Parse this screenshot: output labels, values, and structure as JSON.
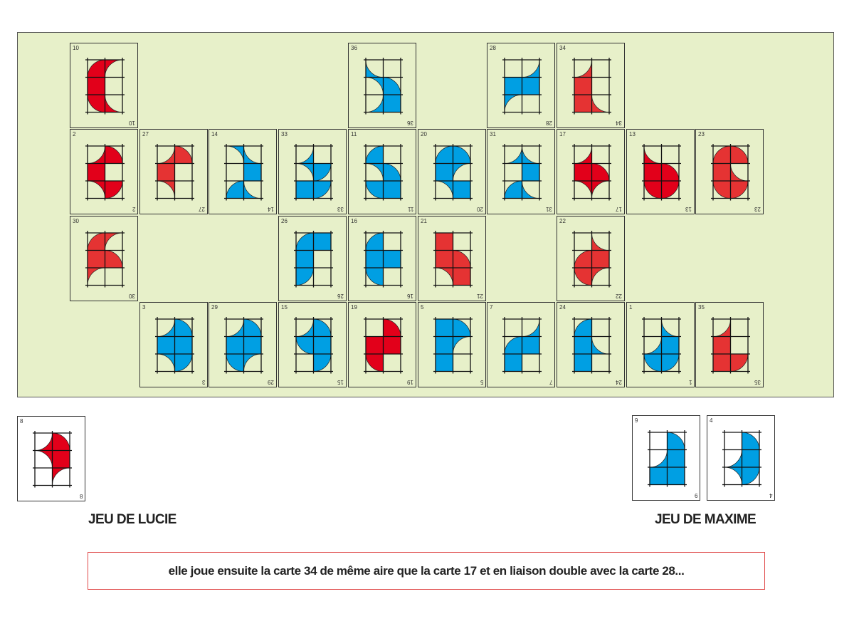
{
  "colors": {
    "red": "#e2001a",
    "red2": "#e53333",
    "blue": "#009fe3",
    "board": "#e7f0c9"
  },
  "board": {
    "rows": [
      [
        "10",
        null,
        null,
        null,
        "36",
        null,
        "28",
        "34",
        null,
        null
      ],
      [
        "2",
        "27",
        "14",
        "33",
        "11",
        "20",
        "31",
        "17",
        "13",
        "23"
      ],
      [
        "30",
        null,
        null,
        "26",
        "16",
        "21",
        null,
        "22",
        null,
        null
      ],
      [
        null,
        "3",
        "29",
        "15",
        "19",
        "5",
        "7",
        "24",
        "1",
        "35"
      ]
    ]
  },
  "hands": {
    "lucie": {
      "label": "JEU DE LUCIE",
      "cards": [
        "8"
      ]
    },
    "maxime": {
      "label": "JEU DE MAXIME",
      "cards": [
        "9",
        "4"
      ]
    }
  },
  "message": "elle joue ensuite la carte 34 de même aire que la carte 17 et en liaison double avec la carte 28...",
  "cards": {
    "10": {
      "number": "10",
      "color": "red",
      "cells": [
        "q-br",
        "c-br",
        "F",
        "E",
        "q-tr",
        "c-tr"
      ]
    },
    "36": {
      "number": "36",
      "color": "blue",
      "cells": [
        "c-tr",
        "E",
        "c-bl",
        "q-bl",
        "c-tl",
        "F"
      ]
    },
    "28": {
      "number": "28",
      "color": "blue",
      "cells": [
        "E",
        "c-tl",
        "F",
        "F",
        "c-br",
        "E"
      ]
    },
    "34": {
      "number": "34",
      "color": "red2",
      "cells": [
        "c-tl",
        "E",
        "F",
        "E",
        "F",
        "c-tr"
      ]
    },
    "2": {
      "number": "2",
      "color": "red",
      "cells": [
        "c-tl",
        "q-bl",
        "F",
        "E",
        "c-bl",
        "q-tl"
      ]
    },
    "27": {
      "number": "27",
      "color": "red2",
      "cells": [
        "c-tl",
        "q-bl",
        "F",
        "E",
        "c-bl",
        "E"
      ]
    },
    "14": {
      "number": "14",
      "color": "blue",
      "cells": [
        "c-bl",
        "c-tr",
        "E",
        "F",
        "q-br",
        "c-tr"
      ]
    },
    "33": {
      "number": "33",
      "color": "blue",
      "cells": [
        "c-tl",
        "E",
        "c-bl",
        "q-tl",
        "F",
        "q-tl"
      ]
    },
    "11": {
      "number": "11",
      "color": "blue",
      "cells": [
        "q-br",
        "E",
        "c-bl",
        "q-bl",
        "q-tr",
        "F"
      ]
    },
    "20": {
      "number": "20",
      "color": "blue",
      "cells": [
        "q-br",
        "q-bl",
        "F",
        "c-br",
        "c-bl",
        "F"
      ]
    },
    "31": {
      "number": "31",
      "color": "blue",
      "cells": [
        "c-tl",
        "c-tr",
        "E",
        "F",
        "q-br",
        "c-tr"
      ]
    },
    "17": {
      "number": "17",
      "color": "red",
      "cells": [
        "c-tl",
        "E",
        "F",
        "q-bl",
        "c-bl",
        "c-br"
      ]
    },
    "13": {
      "number": "13",
      "color": "red",
      "cells": [
        "c-tr",
        "E",
        "F",
        "q-bl",
        "q-tr",
        "q-tl"
      ]
    },
    "23": {
      "number": "23",
      "color": "red2",
      "cells": [
        "q-br",
        "q-bl",
        "F",
        "c-tr",
        "q-tr",
        "q-tl"
      ]
    },
    "30": {
      "number": "30",
      "color": "red2",
      "cells": [
        "q-br",
        "c-br",
        "F",
        "q-bl",
        "c-br",
        "E"
      ]
    },
    "26": {
      "number": "26",
      "color": "blue",
      "cells": [
        "q-br",
        "F",
        "F",
        "E",
        "q-tl",
        "E"
      ]
    },
    "16": {
      "number": "16",
      "color": "blue",
      "cells": [
        "q-br",
        "E",
        "F",
        "F",
        "q-tr",
        "E"
      ]
    },
    "21": {
      "number": "21",
      "color": "red2",
      "cells": [
        "F",
        "E",
        "F",
        "q-bl",
        "c-bl",
        "F"
      ]
    },
    "22": {
      "number": "22",
      "color": "red2",
      "cells": [
        "E",
        "c-tr",
        "q-br",
        "F",
        "q-tr",
        "c-br"
      ]
    },
    "3": {
      "number": "3",
      "color": "blue",
      "cells": [
        "c-tl",
        "q-bl",
        "F",
        "F",
        "c-bl",
        "q-tl"
      ]
    },
    "29": {
      "number": "29",
      "color": "blue",
      "cells": [
        "c-tl",
        "q-bl",
        "F",
        "F",
        "q-tr",
        "c-br"
      ]
    },
    "15": {
      "number": "15",
      "color": "blue",
      "cells": [
        "c-tl",
        "q-bl",
        "q-tr",
        "F",
        "E",
        "q-tl"
      ]
    },
    "19": {
      "number": "19",
      "color": "red",
      "cells": [
        "E",
        "q-bl",
        "F",
        "F",
        "q-tr",
        "E"
      ]
    },
    "5": {
      "number": "5",
      "color": "blue",
      "cells": [
        "F",
        "q-bl",
        "F",
        "c-br",
        "F",
        "E"
      ]
    },
    "7": {
      "number": "7",
      "color": "blue",
      "cells": [
        "E",
        "c-tl",
        "q-br",
        "F",
        "F",
        "E"
      ]
    },
    "24": {
      "number": "24",
      "color": "blue",
      "cells": [
        "q-br",
        "E",
        "F",
        "c-tr",
        "F",
        "E"
      ]
    },
    "1": {
      "number": "1",
      "color": "blue",
      "cells": [
        "E",
        "c-tr",
        "c-tl",
        "F",
        "q-tr",
        "q-tl"
      ]
    },
    "35": {
      "number": "35",
      "color": "red2",
      "cells": [
        "c-tl",
        "E",
        "F",
        "E",
        "F",
        "q-tl"
      ]
    },
    "8": {
      "number": "8",
      "color": "red",
      "cells": [
        "c-tl",
        "q-bl",
        "c-bl",
        "F",
        "E",
        "c-br"
      ]
    },
    "9": {
      "number": "9",
      "color": "blue",
      "cells": [
        "E",
        "q-bl",
        "c-tl",
        "F",
        "F",
        "F"
      ]
    },
    "4": {
      "number": "4",
      "color": "blue",
      "cells": [
        "E",
        "q-bl",
        "c-tl",
        "F",
        "c-bl",
        "q-tl"
      ]
    }
  }
}
